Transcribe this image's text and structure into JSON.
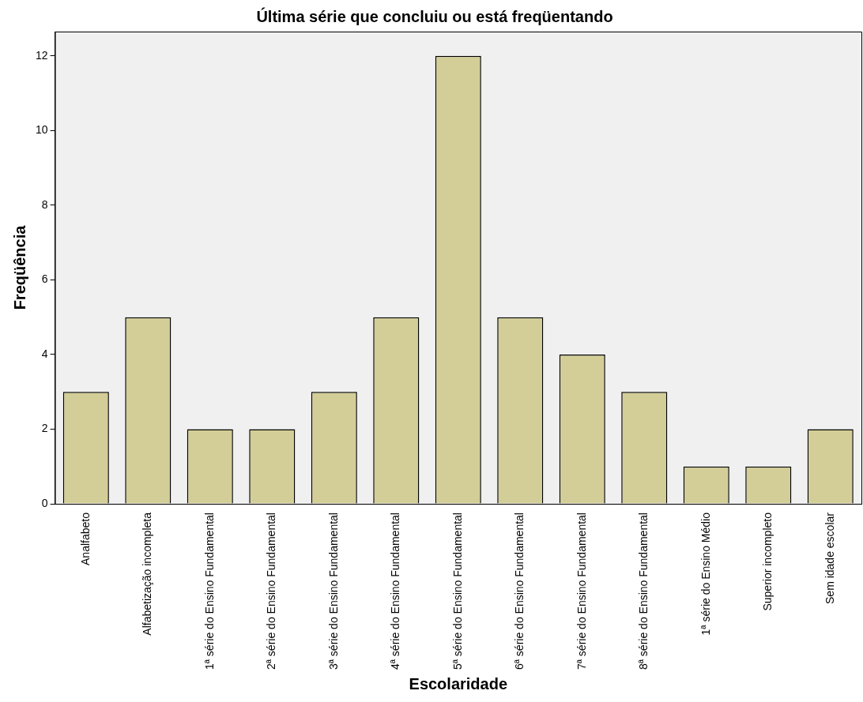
{
  "chart_data": {
    "type": "bar",
    "title": "Última série que concluiu ou está freqüentando",
    "xlabel": "Escolaridade",
    "ylabel": "Freqüência",
    "categories": [
      "Analfabeto",
      "Alfabetização incompleta",
      "1ª série do Ensino Fundamental",
      "2ª série do Ensino Fundamental",
      "3ª série do Ensino Fundamental",
      "4ª série do Ensino Fundamental",
      "5ª série do Ensino Fundamental",
      "6ª série do Ensino Fundamental",
      "7ª série do Ensino Fundamental",
      "8ª série do Ensino Fundamental",
      "1ª série do Ensino Médio",
      "Superior incompleto",
      "Sem idade escolar"
    ],
    "values": [
      3,
      5,
      2,
      2,
      3,
      5,
      12,
      5,
      4,
      3,
      1,
      1,
      2
    ],
    "color": "#d3ce97",
    "ylim": [
      0,
      12.65
    ],
    "yticks": [
      0,
      2,
      4,
      6,
      8,
      10,
      12
    ],
    "grid": false,
    "legend": false
  }
}
